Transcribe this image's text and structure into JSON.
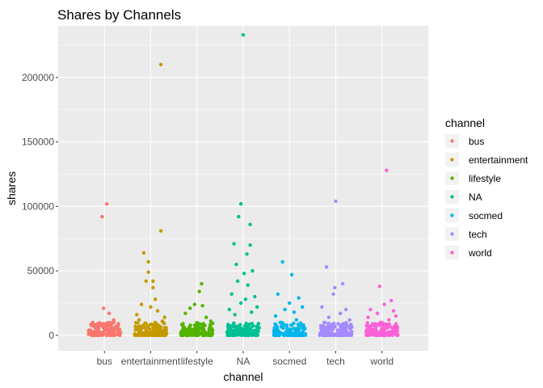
{
  "chart_data": {
    "type": "scatter",
    "title": "Shares by Channels",
    "xlabel": "channel",
    "ylabel": "shares",
    "categories": [
      "bus",
      "entertainment",
      "lifestyle",
      "NA",
      "socmed",
      "tech",
      "world"
    ],
    "ylim": [
      -12000,
      240000
    ],
    "yticks": [
      0,
      50000,
      100000,
      150000,
      200000
    ],
    "ytick_labels": [
      "0",
      "50000",
      "100000",
      "150000",
      "200000"
    ],
    "grid": true,
    "legend": {
      "title": "channel",
      "position": "right"
    },
    "colors": {
      "bus": "#F8766D",
      "entertainment": "#C49A00",
      "lifestyle": "#53B400",
      "NA": "#00C094",
      "socmed": "#00B6EB",
      "tech": "#A58AFF",
      "world": "#FB61D7",
      "panel": "#EBEBEB",
      "grid": "#FFFFFF"
    },
    "series": [
      {
        "name": "bus",
        "points": [
          [
            -0.05,
            92000
          ],
          [
            0.05,
            102000
          ],
          [
            -0.02,
            21000
          ],
          [
            0.1,
            17000
          ],
          [
            -0.25,
            10000
          ],
          [
            0.3,
            9000
          ],
          [
            -0.1,
            8000
          ],
          [
            0.2,
            12000
          ],
          [
            0.0,
            6000
          ],
          [
            -0.3,
            4000
          ],
          [
            0.15,
            5000
          ],
          [
            -0.15,
            3000
          ]
        ]
      },
      {
        "name": "entertainment",
        "points": [
          [
            0.22,
            210000
          ],
          [
            0.22,
            81000
          ],
          [
            -0.15,
            64000
          ],
          [
            -0.05,
            57000
          ],
          [
            -0.05,
            49000
          ],
          [
            -0.1,
            42000
          ],
          [
            0.05,
            42000
          ],
          [
            0.05,
            37000
          ],
          [
            0.1,
            28000
          ],
          [
            -0.2,
            24000
          ],
          [
            0.0,
            22000
          ],
          [
            0.15,
            19000
          ],
          [
            -0.3,
            16000
          ],
          [
            0.3,
            14000
          ],
          [
            -0.25,
            12000
          ],
          [
            0.25,
            11000
          ],
          [
            0.1,
            10000
          ]
        ]
      },
      {
        "name": "lifestyle",
        "points": [
          [
            0.1,
            40000
          ],
          [
            0.05,
            34000
          ],
          [
            -0.05,
            24000
          ],
          [
            -0.15,
            21000
          ],
          [
            0.12,
            23000
          ],
          [
            -0.25,
            17000
          ],
          [
            0.2,
            14000
          ],
          [
            0.3,
            11000
          ],
          [
            -0.3,
            9000
          ],
          [
            0.0,
            7000
          ]
        ]
      },
      {
        "name": "NA",
        "points": [
          [
            0.0,
            233000
          ],
          [
            -0.05,
            102000
          ],
          [
            -0.1,
            92000
          ],
          [
            0.15,
            86000
          ],
          [
            -0.2,
            71000
          ],
          [
            0.15,
            70000
          ],
          [
            0.08,
            63000
          ],
          [
            -0.15,
            55000
          ],
          [
            0.2,
            50000
          ],
          [
            0.02,
            48000
          ],
          [
            -0.12,
            42000
          ],
          [
            0.1,
            39000
          ],
          [
            -0.25,
            32000
          ],
          [
            0.25,
            30000
          ],
          [
            0.05,
            28000
          ],
          [
            -0.05,
            25000
          ],
          [
            0.3,
            22000
          ],
          [
            -0.3,
            20000
          ],
          [
            0.18,
            18000
          ],
          [
            -0.18,
            16000
          ]
        ]
      },
      {
        "name": "socmed",
        "points": [
          [
            -0.15,
            57000
          ],
          [
            0.05,
            47000
          ],
          [
            -0.25,
            32000
          ],
          [
            0.2,
            29000
          ],
          [
            0.0,
            25000
          ],
          [
            0.28,
            22000
          ],
          [
            -0.1,
            20000
          ],
          [
            0.1,
            18000
          ],
          [
            -0.3,
            15000
          ],
          [
            0.15,
            12000
          ],
          [
            -0.2,
            10000
          ],
          [
            0.3,
            8000
          ]
        ]
      },
      {
        "name": "tech",
        "points": [
          [
            0.0,
            104000
          ],
          [
            -0.2,
            53000
          ],
          [
            0.15,
            40000
          ],
          [
            -0.02,
            37000
          ],
          [
            -0.05,
            32000
          ],
          [
            -0.3,
            22000
          ],
          [
            0.22,
            20000
          ],
          [
            0.1,
            17000
          ],
          [
            -0.15,
            14000
          ],
          [
            0.3,
            12000
          ],
          [
            -0.25,
            10000
          ],
          [
            0.05,
            9000
          ]
        ]
      },
      {
        "name": "world",
        "points": [
          [
            0.1,
            128000
          ],
          [
            -0.05,
            38000
          ],
          [
            0.2,
            27000
          ],
          [
            0.05,
            24000
          ],
          [
            -0.25,
            20000
          ],
          [
            0.25,
            19000
          ],
          [
            -0.1,
            17000
          ],
          [
            0.3,
            15000
          ],
          [
            -0.3,
            14000
          ],
          [
            0.15,
            12000
          ],
          [
            0.0,
            10000
          ],
          [
            -0.2,
            9000
          ]
        ]
      }
    ],
    "base_cluster": {
      "description_free": true,
      "range": [
        0,
        10000
      ],
      "jitter": 0.35,
      "count_per_category": 140
    }
  }
}
